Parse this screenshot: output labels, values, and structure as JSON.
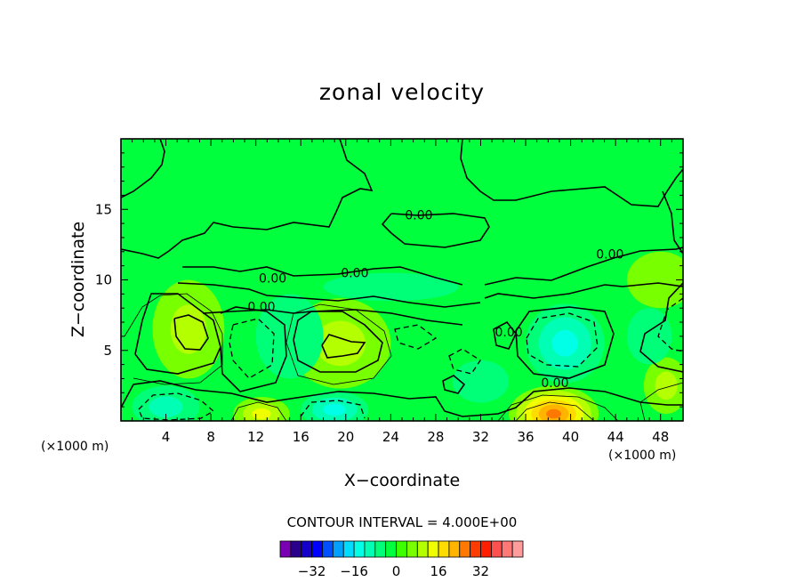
{
  "chart_data": {
    "type": "heatmap",
    "title": "zonal velocity",
    "xlabel": "X−coordinate",
    "ylabel": "Z−coordinate",
    "x_unit_left": "(×1000 m)",
    "x_unit_right": "(×1000 m)",
    "xlim": [
      0,
      50
    ],
    "ylim": [
      0,
      20
    ],
    "x_ticks": [
      {
        "value": 4,
        "label": "4"
      },
      {
        "value": 8,
        "label": "8"
      },
      {
        "value": 12,
        "label": "12"
      },
      {
        "value": 16,
        "label": "16"
      },
      {
        "value": 20,
        "label": "20"
      },
      {
        "value": 24,
        "label": "24"
      },
      {
        "value": 28,
        "label": "28"
      },
      {
        "value": 32,
        "label": "32"
      },
      {
        "value": 36,
        "label": "36"
      },
      {
        "value": 40,
        "label": "40"
      },
      {
        "value": 44,
        "label": "44"
      },
      {
        "value": 48,
        "label": "48"
      }
    ],
    "y_ticks": [
      {
        "value": 5,
        "label": "5"
      },
      {
        "value": 10,
        "label": "10"
      },
      {
        "value": 15,
        "label": "15"
      }
    ],
    "contour_interval_text": "CONTOUR INTERVAL = 4.000E+00",
    "contour_labels": [
      {
        "x": 26.5,
        "z": 14.3,
        "text": "0.00"
      },
      {
        "x": 43.5,
        "z": 11.5,
        "text": "0.00"
      },
      {
        "x": 20.8,
        "z": 10.2,
        "text": "0.00"
      },
      {
        "x": 13.5,
        "z": 9.8,
        "text": "0.00"
      },
      {
        "x": 12.5,
        "z": 7.8,
        "text": "0.00"
      },
      {
        "x": 34.5,
        "z": 6.0,
        "text": "0.00"
      },
      {
        "x": 38.6,
        "z": 2.4,
        "text": "0.00"
      }
    ],
    "colorbar": {
      "colors": [
        "#7a00b4",
        "#28008c",
        "#1400c8",
        "#0000ff",
        "#0050ff",
        "#00a0ff",
        "#00dcff",
        "#00ffe6",
        "#00ffb4",
        "#00ff78",
        "#00ff3c",
        "#3cff00",
        "#78ff00",
        "#b4ff00",
        "#f0ff00",
        "#ffdc00",
        "#ffb400",
        "#ff7800",
        "#ff3c00",
        "#ff1e00",
        "#ff5050",
        "#ff7878",
        "#ff9c9c"
      ],
      "tick_labels": [
        {
          "value": -32,
          "label": "−32"
        },
        {
          "value": -16,
          "label": "−16"
        },
        {
          "value": 0,
          "label": "0"
        },
        {
          "value": 16,
          "label": "16"
        },
        {
          "value": 32,
          "label": "32"
        }
      ],
      "range": [
        -44,
        48
      ]
    },
    "field_features": [
      {
        "x": 6,
        "z": 6.5,
        "rx": 3.2,
        "rz": 3.5,
        "value": 8
      },
      {
        "x": 19.5,
        "z": 5.5,
        "rx": 4.5,
        "rz": 3.2,
        "value": 8
      },
      {
        "x": 15,
        "z": 6,
        "rx": 3,
        "rz": 3,
        "value": -4
      },
      {
        "x": 4,
        "z": 1.0,
        "rx": 3,
        "rz": 1.5,
        "value": -8
      },
      {
        "x": 19,
        "z": 0.8,
        "rx": 3,
        "rz": 1.3,
        "value": -10
      },
      {
        "x": 12.5,
        "z": 0.5,
        "rx": 2.5,
        "rz": 1.2,
        "value": 12
      },
      {
        "x": 38.5,
        "z": 0.5,
        "rx": 4,
        "rz": 2,
        "value": 24
      },
      {
        "x": 39.5,
        "z": 5.5,
        "rx": 3.5,
        "rz": 2.8,
        "value": -12
      },
      {
        "x": 32,
        "z": 2.8,
        "rx": 2.5,
        "rz": 1.5,
        "value": -4
      },
      {
        "x": 48.5,
        "z": 2.5,
        "rx": 2,
        "rz": 2,
        "value": 8
      },
      {
        "x": 47,
        "z": 6,
        "rx": 2,
        "rz": 2,
        "value": -4
      },
      {
        "x": 24,
        "z": 9.5,
        "rx": 6,
        "rz": 1,
        "value": -2
      },
      {
        "x": 48,
        "z": 10,
        "rx": 3,
        "rz": 2,
        "value": 3
      }
    ]
  }
}
